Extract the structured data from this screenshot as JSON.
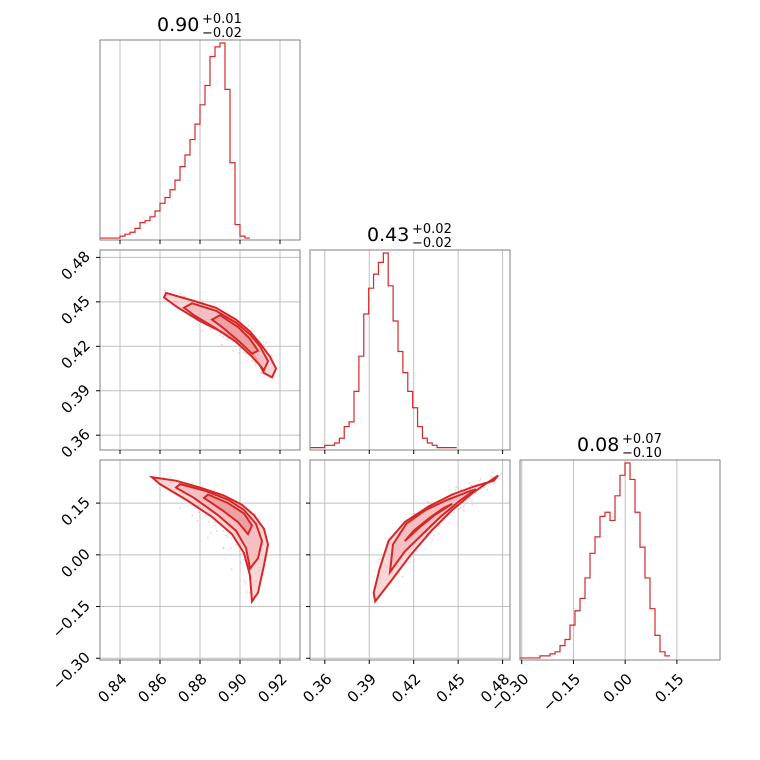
{
  "colors": {
    "accent": "#d62728",
    "grid": "#bfbfbf",
    "frame": "#808080",
    "fill": "#f4b8b9",
    "points": "#f2a6a8"
  },
  "chart_data": {
    "type": "corner",
    "parameters": [
      {
        "id": "p0",
        "title": {
          "value": "0.90",
          "plus": "+0.01",
          "minus": "−0.02"
        },
        "range": [
          0.83,
          0.93
        ],
        "ticks": [
          0.84,
          0.86,
          0.88,
          0.9,
          0.92
        ],
        "tick_labels": [
          "0.84",
          "0.86",
          "0.88",
          "0.90",
          "0.92"
        ]
      },
      {
        "id": "p1",
        "title": {
          "value": "0.43",
          "plus": "+0.02",
          "minus": "−0.02"
        },
        "range": [
          0.35,
          0.485
        ],
        "ticks": [
          0.36,
          0.39,
          0.42,
          0.45,
          0.48
        ],
        "tick_labels": [
          "0.36",
          "0.39",
          "0.42",
          "0.45",
          "0.48"
        ]
      },
      {
        "id": "p2",
        "title": {
          "value": "0.08",
          "plus": "+0.07",
          "minus": "−0.10"
        },
        "range": [
          -0.305,
          0.275
        ],
        "ticks": [
          -0.3,
          -0.15,
          0.0,
          0.15
        ],
        "tick_labels": [
          "−0.30",
          "−0.15",
          "0.00",
          "0.15"
        ]
      }
    ],
    "histograms": [
      {
        "param": "p0",
        "bin_start": 0.83,
        "bin_width": 0.0025,
        "counts": [
          1,
          1,
          1,
          1,
          2,
          3,
          4,
          6,
          9,
          10,
          12,
          15,
          19,
          22,
          26,
          31,
          38,
          44,
          52,
          60,
          70,
          80,
          95,
          100,
          102,
          78,
          40,
          8,
          2,
          1
        ]
      },
      {
        "param": "p1",
        "bin_start": 0.35,
        "bin_width": 0.0033,
        "counts": [
          1,
          1,
          1,
          2,
          2,
          3,
          5,
          10,
          12,
          25,
          40,
          58,
          69,
          75,
          80,
          84,
          70,
          55,
          42,
          33,
          25,
          18,
          10,
          5,
          3,
          2,
          1,
          1,
          1,
          1
        ]
      },
      {
        "param": "p2",
        "bin_start": -0.305,
        "bin_width": 0.0145,
        "counts": [
          1,
          1,
          1,
          1,
          2,
          2,
          3,
          4,
          7,
          10,
          17,
          24,
          30,
          40,
          52,
          60,
          70,
          72,
          68,
          80,
          90,
          96,
          88,
          72,
          55,
          40,
          25,
          12,
          4,
          2
        ]
      }
    ],
    "contour_panels": [
      {
        "x_param": "p0",
        "y_param": "p1",
        "outer": [
          [
            0.863,
            0.456
          ],
          [
            0.876,
            0.451
          ],
          [
            0.888,
            0.446
          ],
          [
            0.898,
            0.438
          ],
          [
            0.905,
            0.43
          ],
          [
            0.91,
            0.422
          ],
          [
            0.915,
            0.413
          ],
          [
            0.918,
            0.405
          ],
          [
            0.916,
            0.399
          ],
          [
            0.912,
            0.402
          ],
          [
            0.908,
            0.412
          ],
          [
            0.902,
            0.421
          ],
          [
            0.892,
            0.429
          ],
          [
            0.88,
            0.437
          ],
          [
            0.868,
            0.447
          ],
          [
            0.862,
            0.453
          ]
        ],
        "mid": [
          [
            0.876,
            0.449
          ],
          [
            0.888,
            0.444
          ],
          [
            0.898,
            0.436
          ],
          [
            0.905,
            0.428
          ],
          [
            0.91,
            0.42
          ],
          [
            0.914,
            0.41
          ],
          [
            0.912,
            0.404
          ],
          [
            0.906,
            0.413
          ],
          [
            0.898,
            0.423
          ],
          [
            0.888,
            0.432
          ],
          [
            0.877,
            0.441
          ],
          [
            0.872,
            0.446
          ]
        ],
        "inner": [
          [
            0.89,
            0.441
          ],
          [
            0.899,
            0.433
          ],
          [
            0.905,
            0.425
          ],
          [
            0.909,
            0.417
          ],
          [
            0.906,
            0.415
          ],
          [
            0.899,
            0.424
          ],
          [
            0.891,
            0.433
          ],
          [
            0.886,
            0.438
          ]
        ]
      },
      {
        "x_param": "p0",
        "y_param": "p2",
        "outer": [
          [
            0.856,
            0.225
          ],
          [
            0.868,
            0.215
          ],
          [
            0.88,
            0.195
          ],
          [
            0.892,
            0.172
          ],
          [
            0.901,
            0.145
          ],
          [
            0.907,
            0.115
          ],
          [
            0.912,
            0.075
          ],
          [
            0.914,
            0.03
          ],
          [
            0.912,
            -0.03
          ],
          [
            0.909,
            -0.11
          ],
          [
            0.906,
            -0.135
          ],
          [
            0.905,
            -0.06
          ],
          [
            0.902,
            0.005
          ],
          [
            0.896,
            0.06
          ],
          [
            0.886,
            0.11
          ],
          [
            0.873,
            0.16
          ],
          [
            0.86,
            0.205
          ]
        ],
        "mid": [
          [
            0.87,
            0.205
          ],
          [
            0.883,
            0.185
          ],
          [
            0.894,
            0.16
          ],
          [
            0.902,
            0.13
          ],
          [
            0.908,
            0.09
          ],
          [
            0.911,
            0.04
          ],
          [
            0.909,
            -0.01
          ],
          [
            0.905,
            -0.04
          ],
          [
            0.903,
            0.02
          ],
          [
            0.898,
            0.07
          ],
          [
            0.889,
            0.115
          ],
          [
            0.877,
            0.165
          ],
          [
            0.868,
            0.195
          ]
        ],
        "inner": [
          [
            0.884,
            0.175
          ],
          [
            0.894,
            0.15
          ],
          [
            0.902,
            0.12
          ],
          [
            0.906,
            0.085
          ],
          [
            0.904,
            0.06
          ],
          [
            0.899,
            0.095
          ],
          [
            0.891,
            0.13
          ],
          [
            0.882,
            0.165
          ]
        ]
      },
      {
        "x_param": "p1",
        "y_param": "p2",
        "outer": [
          [
            0.394,
            -0.135
          ],
          [
            0.404,
            -0.08
          ],
          [
            0.418,
            0.0
          ],
          [
            0.432,
            0.07
          ],
          [
            0.446,
            0.13
          ],
          [
            0.46,
            0.18
          ],
          [
            0.47,
            0.21
          ],
          [
            0.477,
            0.23
          ],
          [
            0.474,
            0.215
          ],
          [
            0.462,
            0.2
          ],
          [
            0.446,
            0.175
          ],
          [
            0.43,
            0.14
          ],
          [
            0.414,
            0.095
          ],
          [
            0.403,
            0.04
          ],
          [
            0.397,
            -0.04
          ],
          [
            0.393,
            -0.11
          ]
        ],
        "mid": [
          [
            0.404,
            -0.05
          ],
          [
            0.414,
            0.01
          ],
          [
            0.426,
            0.06
          ],
          [
            0.438,
            0.11
          ],
          [
            0.452,
            0.16
          ],
          [
            0.462,
            0.19
          ],
          [
            0.458,
            0.185
          ],
          [
            0.443,
            0.16
          ],
          [
            0.428,
            0.13
          ],
          [
            0.415,
            0.09
          ],
          [
            0.406,
            0.03
          ]
        ],
        "inner": [
          [
            0.414,
            0.04
          ],
          [
            0.424,
            0.08
          ],
          [
            0.434,
            0.115
          ],
          [
            0.446,
            0.148
          ],
          [
            0.44,
            0.135
          ],
          [
            0.43,
            0.105
          ],
          [
            0.42,
            0.07
          ]
        ]
      }
    ]
  }
}
